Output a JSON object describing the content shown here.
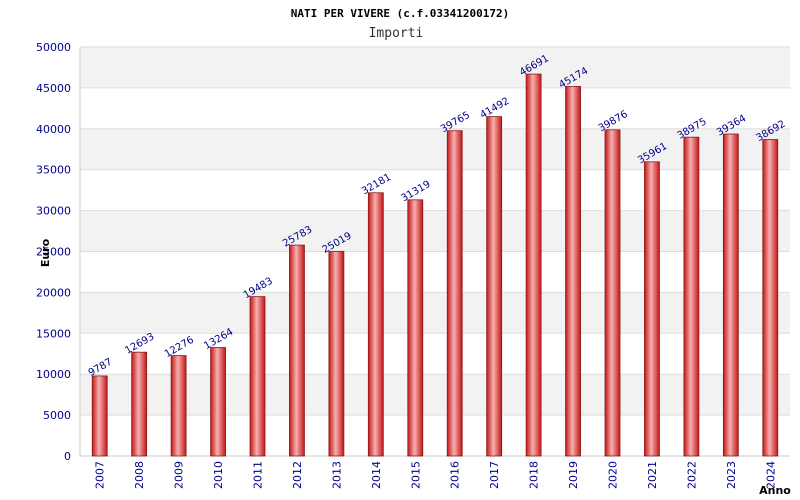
{
  "chart_data": {
    "type": "bar",
    "title": "NATI PER VIVERE (c.f.03341200172)",
    "subtitle": "Importi",
    "xlabel": "Anno",
    "ylabel": "Euro",
    "ylim": [
      0,
      50000
    ],
    "yticks": [
      0,
      5000,
      10000,
      15000,
      20000,
      25000,
      30000,
      35000,
      40000,
      45000,
      50000
    ],
    "grid": true,
    "categories": [
      "2007",
      "2008",
      "2009",
      "2010",
      "2011",
      "2012",
      "2013",
      "2014",
      "2015",
      "2016",
      "2017",
      "2018",
      "2019",
      "2020",
      "2021",
      "2022",
      "2023",
      "2024"
    ],
    "values": [
      9787,
      12693,
      12276,
      13264,
      19483,
      25783,
      25019,
      32181,
      31319,
      39765,
      41492,
      46691,
      45174,
      39876,
      35961,
      38975,
      39364,
      38692
    ],
    "colors": {
      "bar_edge": "#8b1a1a",
      "bar_dark": "#d42020",
      "bar_light": "#f4a0a0",
      "tick_text": "#00008b",
      "band_alt": "#f2f2f2"
    }
  }
}
